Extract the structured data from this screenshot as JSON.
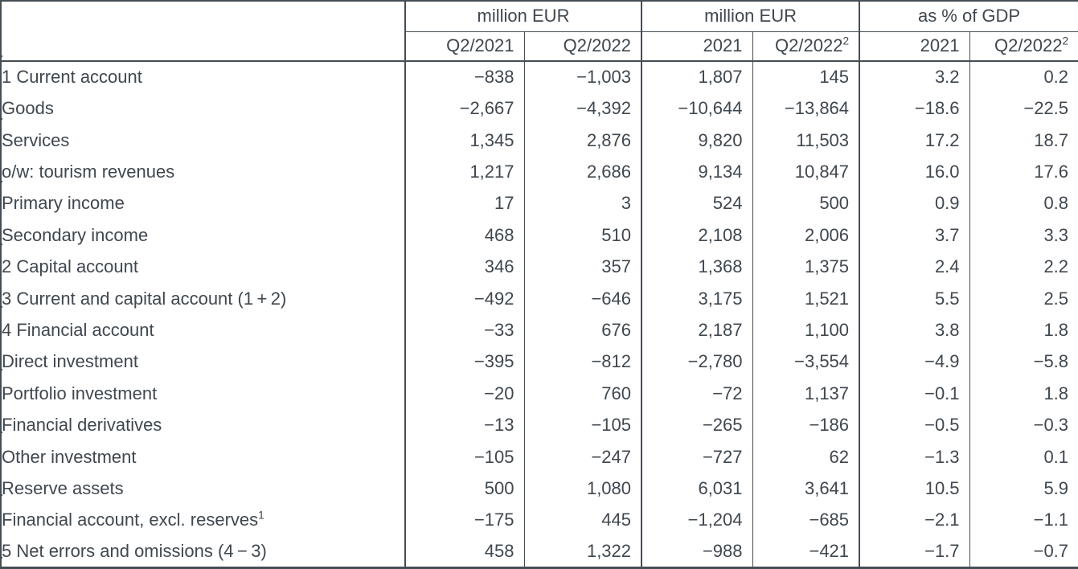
{
  "chart_data": {
    "type": "table",
    "col_groups": [
      {
        "label": "million EUR",
        "span": 2
      },
      {
        "label": "million EUR",
        "span": 2
      },
      {
        "label": "as % of GDP",
        "span": 2
      }
    ],
    "columns": [
      {
        "text": "Q2/2021"
      },
      {
        "text": "Q2/2022"
      },
      {
        "text": "2021"
      },
      {
        "text": "Q2/2022",
        "sup": "2"
      },
      {
        "text": "2021"
      },
      {
        "text": "Q2/2022",
        "sup": "2"
      }
    ],
    "rows": [
      {
        "label": "1 Current account",
        "level": 0,
        "bold": true,
        "values": [
          "−838",
          "−1,003",
          "1,807",
          "145",
          "3.2",
          "0.2"
        ]
      },
      {
        "label": "Goods",
        "level": 2,
        "bold": false,
        "values": [
          "−2,667",
          "−4,392",
          "−10,644",
          "−13,864",
          "−18.6",
          "−22.5"
        ]
      },
      {
        "label": "Services",
        "level": 2,
        "bold": false,
        "values": [
          "1,345",
          "2,876",
          "9,820",
          "11,503",
          "17.2",
          "18.7"
        ]
      },
      {
        "label": "o/w: tourism revenues",
        "level": 3,
        "bold": false,
        "values": [
          "1,217",
          "2,686",
          "9,134",
          "10,847",
          "16.0",
          "17.6"
        ]
      },
      {
        "label": "Primary income",
        "level": 2,
        "bold": false,
        "values": [
          "17",
          "3",
          "524",
          "500",
          "0.9",
          "0.8"
        ]
      },
      {
        "label": "Secondary income",
        "level": 2,
        "bold": false,
        "values": [
          "468",
          "510",
          "2,108",
          "2,006",
          "3.7",
          "3.3"
        ]
      },
      {
        "label": "2 Capital account",
        "level": 0,
        "bold": true,
        "values": [
          "346",
          "357",
          "1,368",
          "1,375",
          "2.4",
          "2.2"
        ]
      },
      {
        "label": "3 Current and capital account (1 + 2)",
        "level": 0,
        "bold": true,
        "values": [
          "−492",
          "−646",
          "3,175",
          "1,521",
          "5.5",
          "2.5"
        ]
      },
      {
        "label": "4 Financial account",
        "level": 0,
        "bold": true,
        "values": [
          "−33",
          "676",
          "2,187",
          "1,100",
          "3.8",
          "1.8"
        ]
      },
      {
        "label": "Direct investment",
        "level": 2,
        "bold": false,
        "values": [
          "−395",
          "−812",
          "−2,780",
          "−3,554",
          "−4.9",
          "−5.8"
        ]
      },
      {
        "label": "Portfolio investment",
        "level": 2,
        "bold": false,
        "values": [
          "−20",
          "760",
          "−72",
          "1,137",
          "−0.1",
          "1.8"
        ]
      },
      {
        "label": "Financial derivatives",
        "level": 2,
        "bold": false,
        "values": [
          "−13",
          "−105",
          "−265",
          "−186",
          "−0.5",
          "−0.3"
        ]
      },
      {
        "label": "Other investment",
        "level": 2,
        "bold": false,
        "values": [
          "−105",
          "−247",
          "−727",
          "62",
          "−1.3",
          "0.1"
        ]
      },
      {
        "label": "Reserve assets",
        "level": 2,
        "bold": false,
        "values": [
          "500",
          "1,080",
          "6,031",
          "3,641",
          "10.5",
          "5.9"
        ]
      },
      {
        "label": "Financial account, excl. reserves",
        "sup": "1",
        "level": 1,
        "bold": false,
        "values": [
          "−175",
          "445",
          "−1,204",
          "−685",
          "−2.1",
          "−1.1"
        ]
      },
      {
        "label": "5 Net errors and omissions (4 − 3)",
        "level": 0,
        "bold": true,
        "values": [
          "458",
          "1,322",
          "−988",
          "−421",
          "−1.7",
          "−0.7"
        ]
      }
    ],
    "colors": {
      "text": "#3f474f",
      "border": "#454d55",
      "background": "#ffffff"
    }
  }
}
